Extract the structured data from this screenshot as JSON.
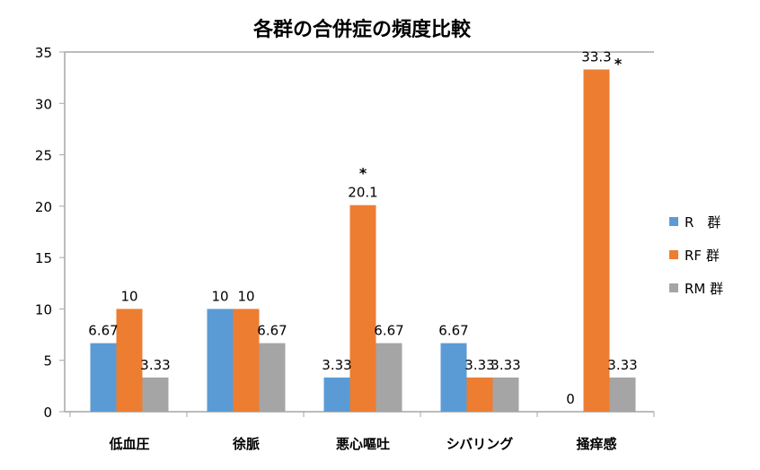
{
  "chart_data": {
    "type": "bar",
    "title": "各群の合併症の頻度比較",
    "xlabel": "",
    "ylabel": "",
    "ylim": [
      0,
      35
    ],
    "yticks": [
      0,
      5,
      10,
      15,
      20,
      25,
      30,
      35
    ],
    "grid": false,
    "legend_position": "right",
    "categories": [
      "低血圧",
      "徐脈",
      "悪心嘔吐",
      "シバリング",
      "掻痒感"
    ],
    "series": [
      {
        "name": "R　群",
        "color": "#5b9bd5",
        "values": [
          6.67,
          10,
          3.33,
          6.67,
          0
        ],
        "labels": [
          "6.67",
          "10",
          "3.33",
          "6.67",
          "0"
        ]
      },
      {
        "name": "RF 群",
        "color": "#ed7d31",
        "values": [
          10,
          10,
          20.1,
          3.33,
          33.3
        ],
        "labels": [
          "10",
          "10",
          "20.1",
          "3.33",
          "33.3"
        ]
      },
      {
        "name": "RM 群",
        "color": "#a5a5a5",
        "values": [
          3.33,
          6.67,
          6.67,
          3.33,
          3.33
        ],
        "labels": [
          "3.33",
          "6.67",
          "6.67",
          "3.33",
          "3.33"
        ]
      }
    ],
    "annotations": [
      {
        "text": "*",
        "category": "悪心嘔吐",
        "series": "RF 群"
      },
      {
        "text": "*",
        "category": "掻痒感",
        "series": "RF 群"
      }
    ]
  }
}
